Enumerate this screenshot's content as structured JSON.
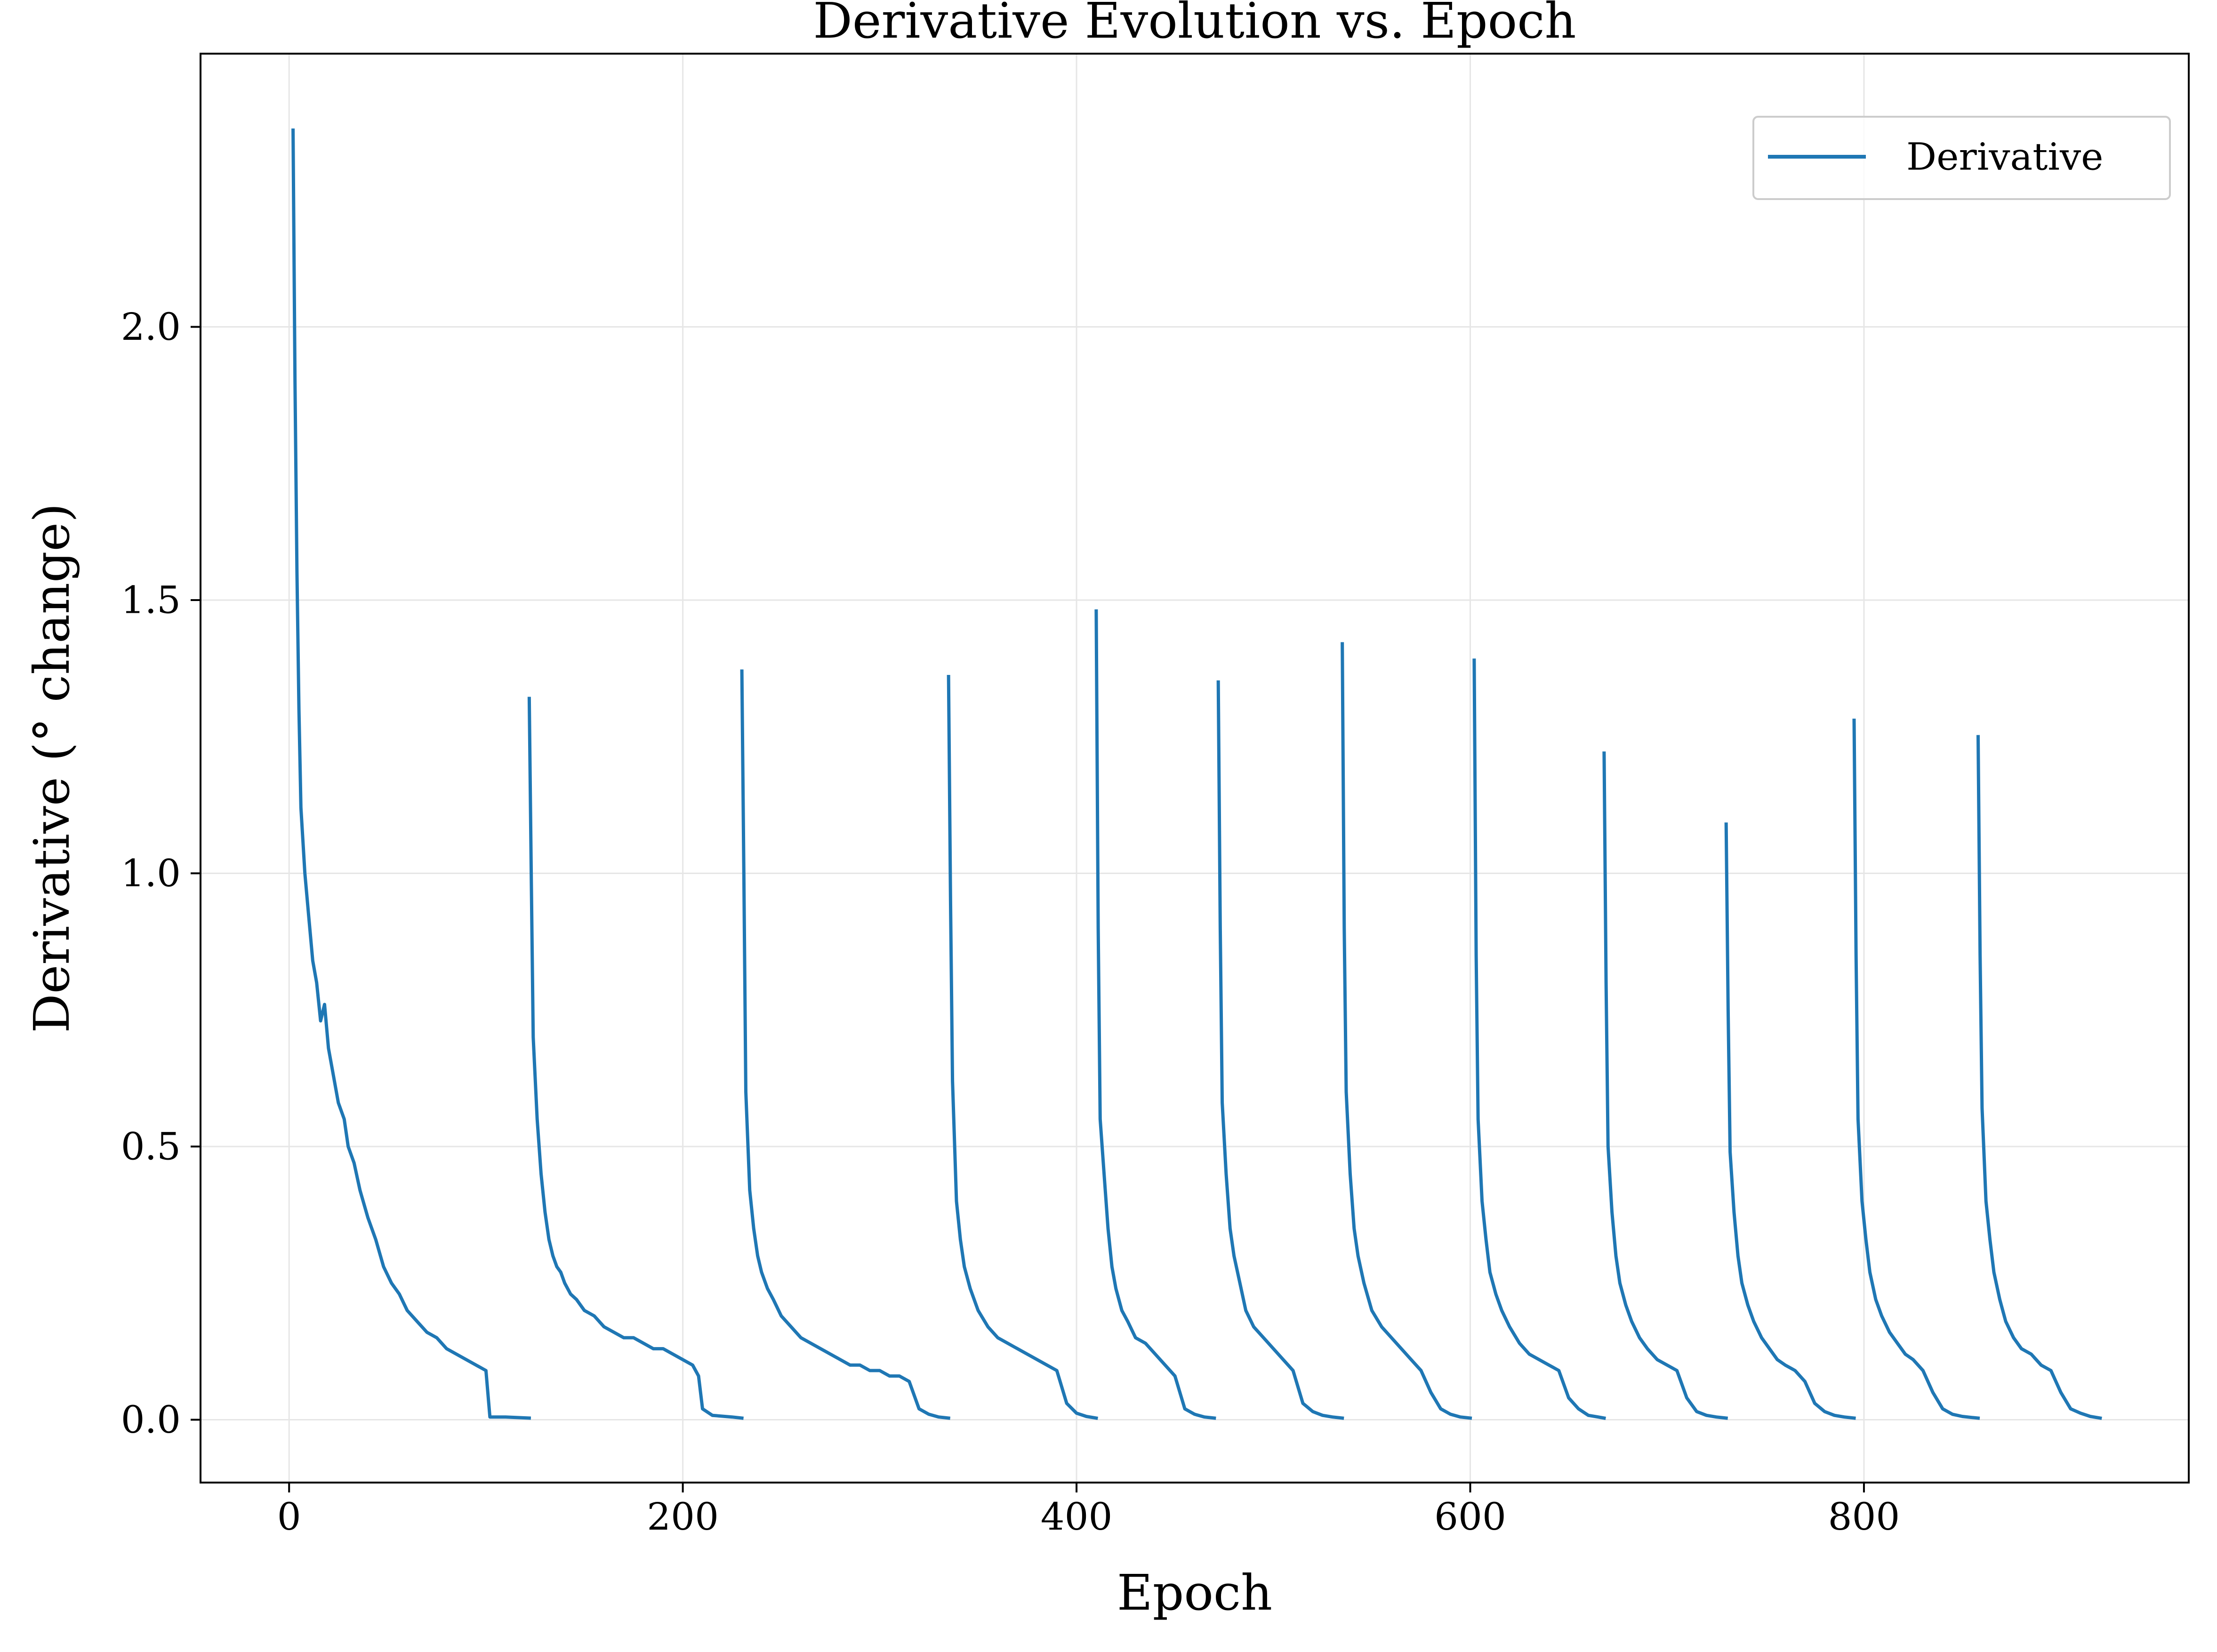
{
  "chart_data": {
    "type": "line",
    "title": "Derivative Evolution vs. Epoch",
    "xlabel": "Epoch",
    "ylabel": "Derivative (° change)",
    "xlim": [
      -45,
      965
    ],
    "ylim": [
      -0.115,
      2.5
    ],
    "xticks": [
      0,
      200,
      400,
      600,
      800
    ],
    "xtick_labels": [
      "0",
      "200",
      "400",
      "600",
      "800"
    ],
    "yticks": [
      0.0,
      0.5,
      1.0,
      1.5,
      2.0
    ],
    "ytick_labels": [
      "0.0",
      "0.5",
      "1.0",
      "1.5",
      "2.0"
    ],
    "grid": true,
    "legend": {
      "position": "top-right"
    },
    "colors": {
      "series": "#1f77b4",
      "grid": "#e6e6e6",
      "axes": "#000000"
    },
    "series": [
      {
        "name": "Derivative",
        "segments": [
          {
            "x": [
              2,
              3,
              4,
              5,
              6,
              8,
              10,
              12,
              14,
              16,
              18,
              20,
              22,
              25,
              28,
              30,
              33,
              36,
              40,
              44,
              48,
              52,
              56,
              60,
              65,
              70,
              75,
              80,
              85,
              90,
              95,
              100,
              102,
              110,
              122
            ],
            "y": [
              2.36,
              1.9,
              1.55,
              1.3,
              1.12,
              1.0,
              0.92,
              0.84,
              0.8,
              0.73,
              0.76,
              0.68,
              0.64,
              0.58,
              0.55,
              0.5,
              0.47,
              0.42,
              0.37,
              0.33,
              0.28,
              0.25,
              0.23,
              0.2,
              0.18,
              0.16,
              0.15,
              0.13,
              0.12,
              0.11,
              0.1,
              0.09,
              0.005,
              0.005,
              0.003
            ]
          },
          {
            "x": [
              122,
              123,
              124,
              126,
              128,
              130,
              132,
              134,
              136,
              138,
              140,
              143,
              146,
              150,
              155,
              160,
              165,
              170,
              175,
              180,
              185,
              190,
              195,
              200,
              205,
              208,
              210,
              215,
              225,
              230
            ],
            "y": [
              1.32,
              1.0,
              0.7,
              0.55,
              0.45,
              0.38,
              0.33,
              0.3,
              0.28,
              0.27,
              0.25,
              0.23,
              0.22,
              0.2,
              0.19,
              0.17,
              0.16,
              0.15,
              0.15,
              0.14,
              0.13,
              0.13,
              0.12,
              0.11,
              0.1,
              0.08,
              0.02,
              0.008,
              0.005,
              0.003
            ]
          },
          {
            "x": [
              230,
              231,
              232,
              234,
              236,
              238,
              240,
              243,
              246,
              250,
              255,
              260,
              265,
              270,
              275,
              280,
              285,
              290,
              295,
              300,
              305,
              310,
              315,
              320,
              325,
              330,
              335
            ],
            "y": [
              1.37,
              1.0,
              0.6,
              0.42,
              0.35,
              0.3,
              0.27,
              0.24,
              0.22,
              0.19,
              0.17,
              0.15,
              0.14,
              0.13,
              0.12,
              0.11,
              0.1,
              0.1,
              0.09,
              0.09,
              0.08,
              0.08,
              0.07,
              0.02,
              0.01,
              0.005,
              0.003
            ]
          },
          {
            "x": [
              335,
              336,
              337,
              339,
              341,
              343,
              346,
              350,
              355,
              360,
              365,
              370,
              375,
              380,
              385,
              390,
              395,
              400,
              405,
              410
            ],
            "y": [
              1.36,
              0.95,
              0.62,
              0.4,
              0.33,
              0.28,
              0.24,
              0.2,
              0.17,
              0.15,
              0.14,
              0.13,
              0.12,
              0.11,
              0.1,
              0.09,
              0.03,
              0.012,
              0.006,
              0.003
            ]
          },
          {
            "x": [
              410,
              411,
              412,
              414,
              416,
              418,
              420,
              423,
              426,
              430,
              435,
              440,
              445,
              450,
              455,
              460,
              465,
              470
            ],
            "y": [
              1.48,
              0.9,
              0.55,
              0.45,
              0.35,
              0.28,
              0.24,
              0.2,
              0.18,
              0.15,
              0.14,
              0.12,
              0.1,
              0.08,
              0.02,
              0.01,
              0.005,
              0.003
            ]
          },
          {
            "x": [
              472,
              473,
              474,
              476,
              478,
              480,
              483,
              486,
              490,
              495,
              500,
              505,
              510,
              515,
              520,
              525,
              530,
              535
            ],
            "y": [
              1.35,
              0.9,
              0.58,
              0.45,
              0.35,
              0.3,
              0.25,
              0.2,
              0.17,
              0.15,
              0.13,
              0.11,
              0.09,
              0.03,
              0.015,
              0.008,
              0.005,
              0.003
            ]
          },
          {
            "x": [
              535,
              536,
              537,
              539,
              541,
              543,
              546,
              550,
              555,
              560,
              565,
              570,
              575,
              580,
              585,
              590,
              595,
              600
            ],
            "y": [
              1.42,
              0.9,
              0.6,
              0.45,
              0.35,
              0.3,
              0.25,
              0.2,
              0.17,
              0.15,
              0.13,
              0.11,
              0.09,
              0.05,
              0.02,
              0.01,
              0.005,
              0.003
            ]
          },
          {
            "x": [
              602,
              603,
              604,
              606,
              608,
              610,
              613,
              616,
              620,
              625,
              630,
              635,
              640,
              645,
              650,
              655,
              660,
              665,
              668
            ],
            "y": [
              1.39,
              0.85,
              0.55,
              0.4,
              0.33,
              0.27,
              0.23,
              0.2,
              0.17,
              0.14,
              0.12,
              0.11,
              0.1,
              0.09,
              0.04,
              0.02,
              0.008,
              0.005,
              0.003
            ]
          },
          {
            "x": [
              668,
              669,
              670,
              672,
              674,
              676,
              679,
              682,
              686,
              690,
              695,
              700,
              705,
              710,
              715,
              720,
              725,
              730
            ],
            "y": [
              1.22,
              0.8,
              0.5,
              0.38,
              0.3,
              0.25,
              0.21,
              0.18,
              0.15,
              0.13,
              0.11,
              0.1,
              0.09,
              0.04,
              0.015,
              0.008,
              0.005,
              0.003
            ]
          },
          {
            "x": [
              730,
              731,
              732,
              734,
              736,
              738,
              741,
              744,
              748,
              752,
              756,
              760,
              765,
              770,
              775,
              780,
              785,
              790,
              795
            ],
            "y": [
              1.09,
              0.75,
              0.49,
              0.38,
              0.3,
              0.25,
              0.21,
              0.18,
              0.15,
              0.13,
              0.11,
              0.1,
              0.09,
              0.07,
              0.03,
              0.015,
              0.008,
              0.005,
              0.003
            ]
          },
          {
            "x": [
              795,
              796,
              797,
              799,
              801,
              803,
              806,
              809,
              813,
              817,
              821,
              825,
              830,
              835,
              840,
              845,
              850,
              855,
              858
            ],
            "y": [
              1.28,
              0.85,
              0.55,
              0.4,
              0.33,
              0.27,
              0.22,
              0.19,
              0.16,
              0.14,
              0.12,
              0.11,
              0.09,
              0.05,
              0.02,
              0.01,
              0.006,
              0.004,
              0.003
            ]
          },
          {
            "x": [
              858,
              859,
              860,
              862,
              864,
              866,
              869,
              872,
              876,
              880,
              885,
              890,
              895,
              900,
              905,
              910,
              915,
              920
            ],
            "y": [
              1.25,
              0.85,
              0.57,
              0.4,
              0.33,
              0.27,
              0.22,
              0.18,
              0.15,
              0.13,
              0.12,
              0.1,
              0.09,
              0.05,
              0.02,
              0.012,
              0.006,
              0.003
            ]
          }
        ]
      }
    ]
  }
}
